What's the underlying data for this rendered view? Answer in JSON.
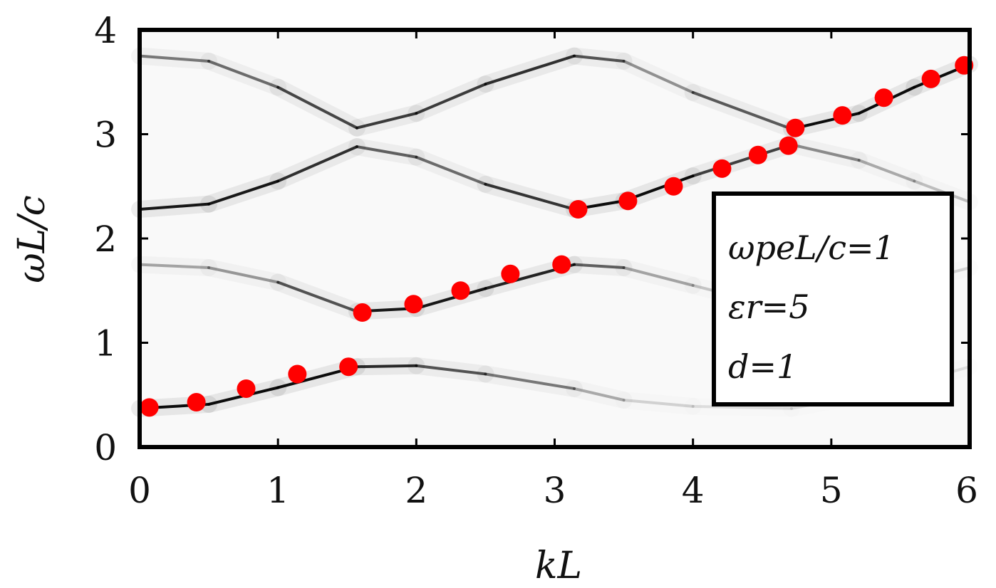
{
  "chart_data": {
    "type": "scatter",
    "xlabel": "kL",
    "ylabel": "ωL/c",
    "xlim": [
      0,
      6
    ],
    "ylim": [
      0,
      4
    ],
    "xticks": [
      "0",
      "1",
      "2",
      "3",
      "4",
      "5",
      "6"
    ],
    "yticks": [
      "0",
      "1",
      "2",
      "3",
      "4"
    ],
    "grid": false,
    "legend_position": "right",
    "annotation": {
      "line1": "ωpeL/c=1",
      "line2": "εr=5",
      "line3": "d=1"
    },
    "background_bands": {
      "description": "grey spectral intensity map with folded dispersion branches",
      "bands": [
        {
          "x": [
            0.0,
            0.5,
            1.0,
            1.5708,
            2.0,
            2.5,
            3.1416,
            3.5,
            4.0,
            4.7124,
            5.2,
            5.6,
            6.0
          ],
          "y": [
            0.37,
            0.41,
            0.57,
            0.77,
            0.78,
            0.7,
            0.56,
            0.45,
            0.39,
            0.37,
            0.49,
            0.62,
            0.77
          ],
          "darkness": [
            0.95,
            0.95,
            0.95,
            0.95,
            0.7,
            0.6,
            0.4,
            0.2,
            0.1,
            0.1,
            0.1,
            0.1,
            0.1
          ]
        },
        {
          "x": [
            0.0,
            0.5,
            1.0,
            1.5708,
            2.0,
            2.5,
            3.1416,
            3.5,
            4.0,
            4.7124,
            5.2,
            5.6,
            6.0
          ],
          "y": [
            1.75,
            1.72,
            1.58,
            1.3,
            1.33,
            1.52,
            1.75,
            1.72,
            1.55,
            1.31,
            1.42,
            1.58,
            1.72
          ],
          "darkness": [
            0.3,
            0.35,
            0.4,
            0.9,
            0.9,
            0.9,
            0.8,
            0.4,
            0.25,
            0.15,
            0.15,
            0.15,
            0.15
          ]
        },
        {
          "x": [
            0.0,
            0.5,
            1.0,
            1.5708,
            2.0,
            2.5,
            3.1416,
            3.5,
            4.0,
            4.7124,
            5.2,
            5.6,
            6.0
          ],
          "y": [
            2.28,
            2.33,
            2.55,
            2.88,
            2.78,
            2.52,
            2.28,
            2.36,
            2.6,
            2.9,
            2.75,
            2.55,
            2.35
          ],
          "darkness": [
            0.9,
            0.9,
            0.9,
            0.7,
            0.5,
            0.6,
            0.95,
            0.95,
            0.95,
            0.5,
            0.35,
            0.25,
            0.2
          ]
        },
        {
          "x": [
            0.0,
            0.5,
            1.0,
            1.5708,
            2.0,
            2.5,
            3.1416,
            3.5,
            4.0,
            4.7124,
            5.2,
            5.6,
            6.0
          ],
          "y": [
            3.75,
            3.7,
            3.45,
            3.06,
            3.2,
            3.48,
            3.75,
            3.7,
            3.4,
            3.05,
            3.2,
            3.45,
            3.67
          ],
          "darkness": [
            0.5,
            0.5,
            0.6,
            0.8,
            0.7,
            0.8,
            0.8,
            0.5,
            0.3,
            0.95,
            0.95,
            0.95,
            0.95
          ]
        }
      ]
    },
    "series": [
      {
        "color": "#ff0000",
        "x": [
          0.07,
          0.41,
          0.77,
          1.14,
          1.51,
          1.61,
          1.98,
          2.32,
          2.68,
          3.05,
          3.17,
          3.53,
          3.86,
          4.21,
          4.47,
          4.69,
          4.74,
          5.08,
          5.38,
          5.72,
          5.96
        ],
        "y": [
          0.38,
          0.43,
          0.56,
          0.7,
          0.77,
          1.29,
          1.37,
          1.5,
          1.66,
          1.75,
          2.28,
          2.36,
          2.5,
          2.67,
          2.8,
          2.89,
          3.06,
          3.18,
          3.35,
          3.53,
          3.66
        ]
      }
    ],
    "colors": {
      "points": "#ff0000",
      "frame": "#000000",
      "band": "#000000",
      "background": "#f8f8f8"
    }
  }
}
